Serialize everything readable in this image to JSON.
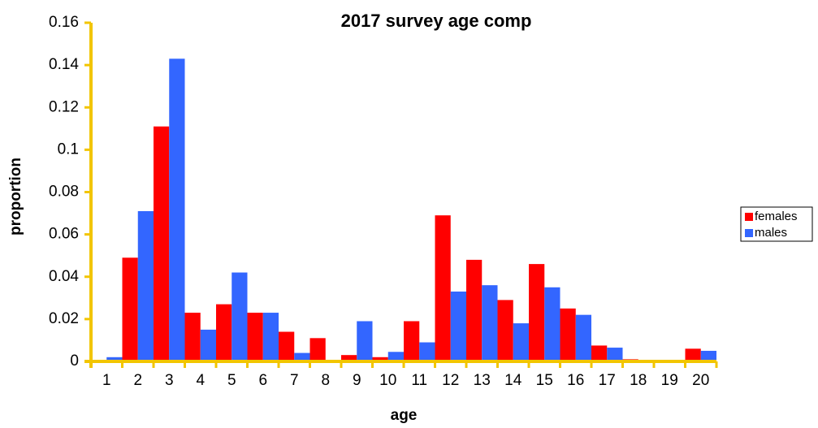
{
  "chart_data": {
    "type": "bar",
    "title": "2017 survey age comp",
    "x_label": "age",
    "y_label": "proportion",
    "categories": [
      "1",
      "2",
      "3",
      "4",
      "5",
      "6",
      "7",
      "8",
      "9",
      "10",
      "11",
      "12",
      "13",
      "14",
      "15",
      "16",
      "17",
      "18",
      "19",
      "20"
    ],
    "series": [
      {
        "name": "females",
        "color": "#ff0000",
        "values": [
          0,
          0.049,
          0.111,
          0.023,
          0.027,
          0.023,
          0.014,
          0.011,
          0.003,
          0.002,
          0.019,
          0.069,
          0.048,
          0.029,
          0.046,
          0.025,
          0.0075,
          0.001,
          0,
          0.006
        ]
      },
      {
        "name": "males",
        "color": "#3366ff",
        "values": [
          0.002,
          0.071,
          0.143,
          0.015,
          0.042,
          0.023,
          0.004,
          0,
          0.019,
          0.0045,
          0.009,
          0.033,
          0.036,
          0.018,
          0.035,
          0.022,
          0.0065,
          0,
          0,
          0.005
        ]
      }
    ],
    "ylim": [
      0,
      0.16
    ],
    "yticks": [
      0,
      0.02,
      0.04,
      0.06,
      0.08,
      0.1,
      0.12,
      0.14,
      0.16
    ],
    "axis_color": "#f2c500",
    "legend": "right"
  }
}
